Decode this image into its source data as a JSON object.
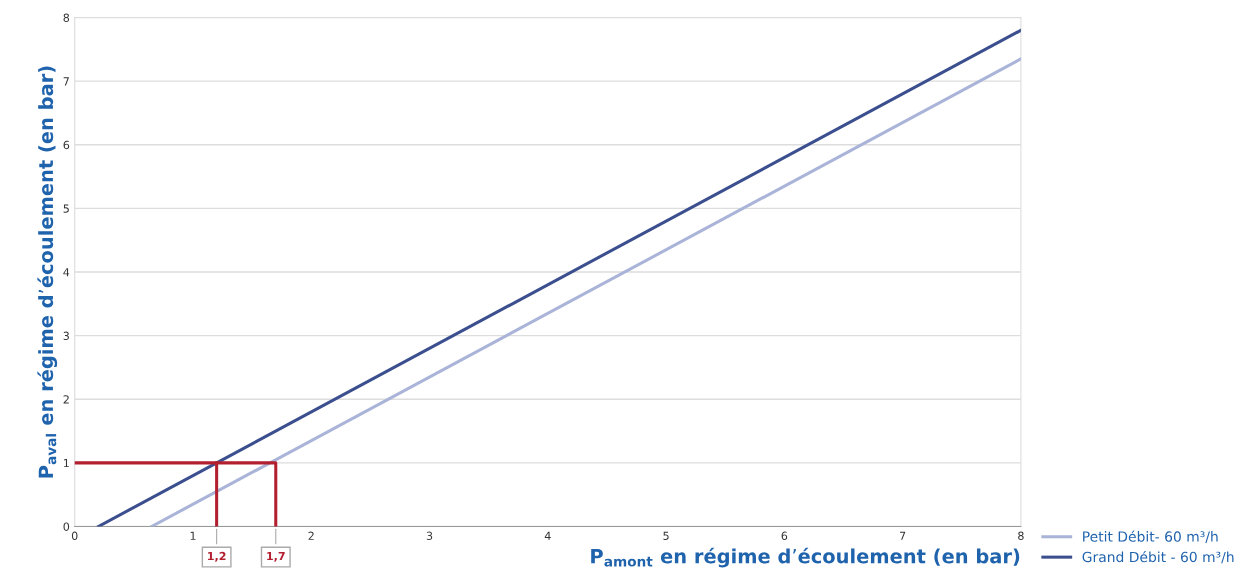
{
  "chart_data": {
    "type": "line",
    "xlabel": "P$_{amont}$ en régime d’écoulement (en bar)",
    "ylabel": "P$_{aval}$ en régime d’écoulement (en bar)",
    "series": [
      {
        "name": "Petit Débit- 60 m³/h",
        "color": "#aab4d8",
        "x": [
          0.65,
          8
        ],
        "values": [
          0,
          7.35
        ]
      },
      {
        "name": "Grand Débit - 60 m³/h",
        "color": "#3b4f8f",
        "x": [
          0.2,
          8
        ],
        "values": [
          0,
          7.8
        ]
      },
      {
        "color": "#b22030",
        "x": [
          0,
          1.7,
          1.7
        ],
        "values": [
          1,
          1,
          0
        ]
      },
      {
        "color": "#b22030",
        "x": [
          1.2,
          1.2
        ],
        "values": [
          1,
          0
        ]
      }
    ],
    "annotations": [
      {
        "text": "1,2",
        "x": 1.2,
        "y": 0
      },
      {
        "text": "1,7",
        "x": 1.7,
        "y": 0
      }
    ],
    "xlim": [
      0,
      8
    ],
    "ylim": [
      0,
      8
    ],
    "xticks": [
      0,
      1,
      2,
      3,
      4,
      5,
      6,
      7,
      8
    ],
    "yticks": [
      0,
      1,
      2,
      3,
      4,
      5,
      6,
      7,
      8
    ],
    "grid": "y",
    "legend": "bottom right",
    "line_style": "solid",
    "marker": "none"
  }
}
